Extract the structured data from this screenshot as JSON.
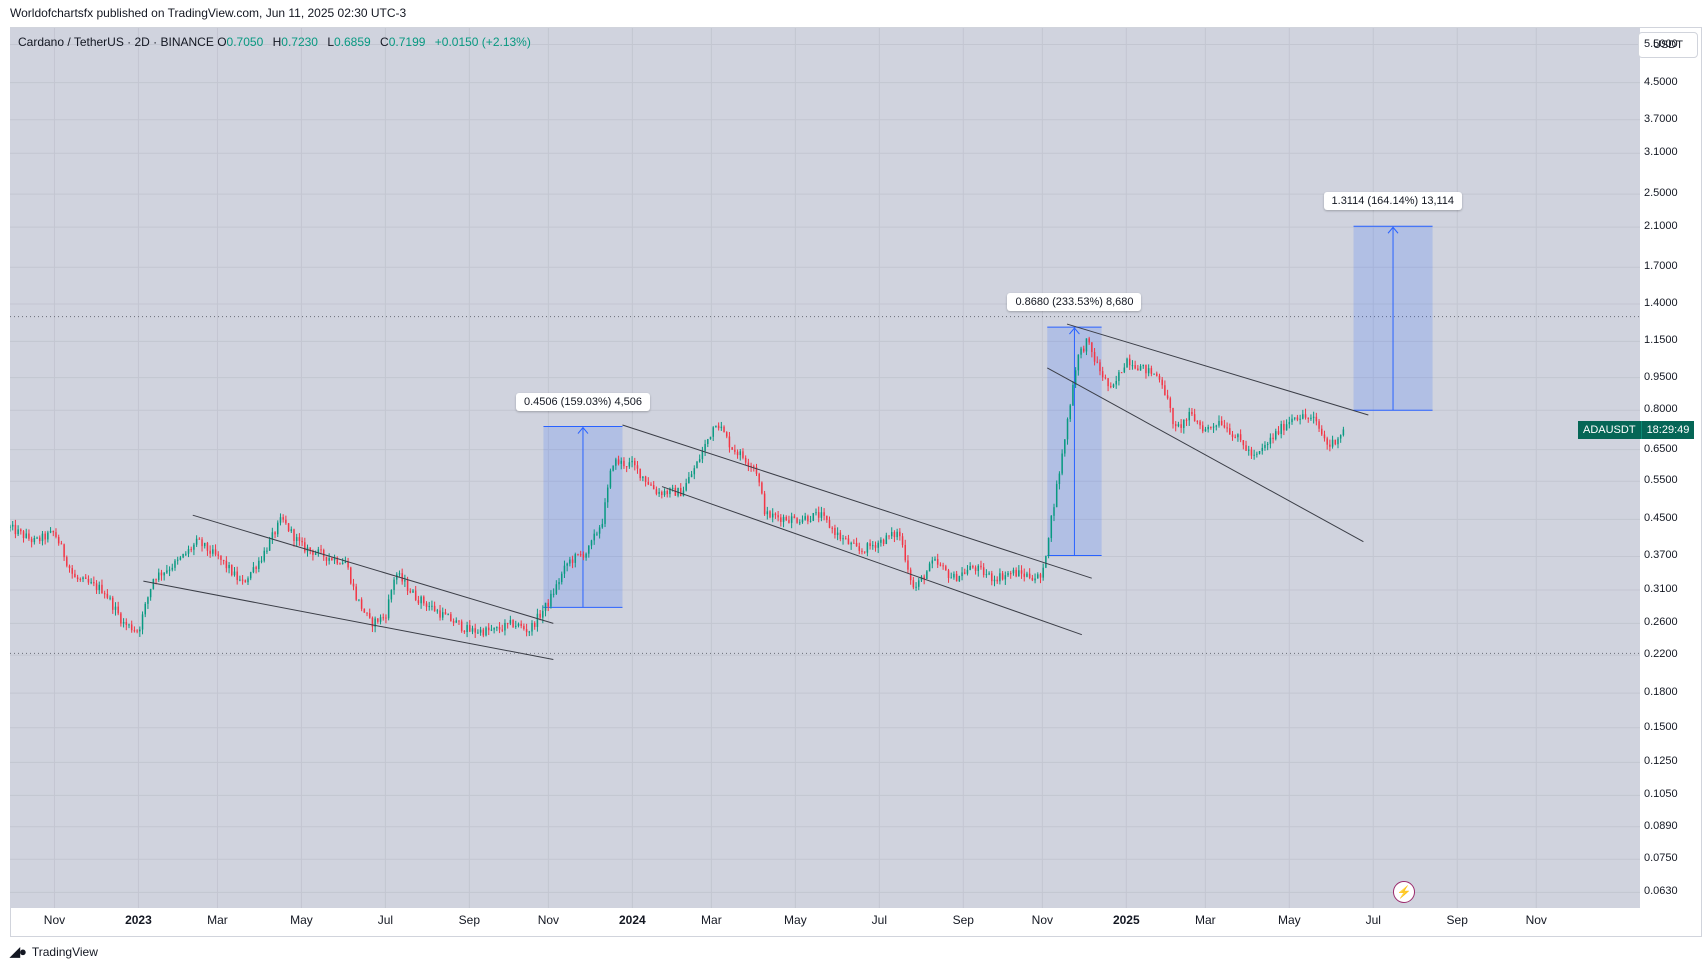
{
  "header": {
    "published_text": "Worldofchartsfx published on TradingView.com, Jun 11, 2025 02:30 UTC-3"
  },
  "legend": {
    "symbol_text": "Cardano / TetherUS · 2D · BINANCE",
    "open_label": "O",
    "open": "0.7050",
    "high_label": "H",
    "high": "0.7230",
    "low_label": "L",
    "low": "0.6859",
    "close_label": "C",
    "close": "0.7199",
    "change": "+0.0150 (+2.13%)"
  },
  "currency_unit": "USDT",
  "price_tag": {
    "symbol": "ADAUSDT",
    "timer": "18:29:49",
    "color": "#056656"
  },
  "colors": {
    "up": "#089981",
    "down": "#f23645",
    "measure": "#2962ff",
    "background": "#d0d3de"
  },
  "brand": {
    "name": "TradingView",
    "icon": "tradingview-logo-icon"
  },
  "chart_data": {
    "type": "candlestick",
    "symbol": "ADAUSDT",
    "timeframe": "2D",
    "y_scale": "log",
    "ylim": [
      0.058,
      6.0
    ],
    "y_ticks": [
      "5.5000",
      "4.5000",
      "3.7000",
      "3.1000",
      "2.5000",
      "2.1000",
      "1.7000",
      "1.4000",
      "1.1500",
      "0.9500",
      "0.8000",
      "0.6500",
      "0.5500",
      "0.4500",
      "0.3700",
      "0.3100",
      "0.2600",
      "0.2200",
      "0.1800",
      "0.1500",
      "0.1250",
      "0.1050",
      "0.0890",
      "0.0750",
      "0.0630"
    ],
    "x_ticks": [
      {
        "label": "Nov",
        "t": 2022.83,
        "year": false
      },
      {
        "label": "2023",
        "t": 2023.0,
        "year": true
      },
      {
        "label": "Mar",
        "t": 2023.16,
        "year": false
      },
      {
        "label": "May",
        "t": 2023.33,
        "year": false
      },
      {
        "label": "Jul",
        "t": 2023.5,
        "year": false
      },
      {
        "label": "Sep",
        "t": 2023.67,
        "year": false
      },
      {
        "label": "Nov",
        "t": 2023.83,
        "year": false
      },
      {
        "label": "2024",
        "t": 2024.0,
        "year": true
      },
      {
        "label": "Mar",
        "t": 2024.16,
        "year": false
      },
      {
        "label": "May",
        "t": 2024.33,
        "year": false
      },
      {
        "label": "Jul",
        "t": 2024.5,
        "year": false
      },
      {
        "label": "Sep",
        "t": 2024.67,
        "year": false
      },
      {
        "label": "Nov",
        "t": 2024.83,
        "year": false
      },
      {
        "label": "2025",
        "t": 2025.0,
        "year": true
      },
      {
        "label": "Mar",
        "t": 2025.16,
        "year": false
      },
      {
        "label": "May",
        "t": 2025.33,
        "year": false
      },
      {
        "label": "Jul",
        "t": 2025.5,
        "year": false
      },
      {
        "label": "Sep",
        "t": 2025.67,
        "year": false
      },
      {
        "label": "Nov",
        "t": 2025.83,
        "year": false
      }
    ],
    "xlim": [
      2022.74,
      2026.04
    ],
    "price_path": [
      [
        2022.74,
        0.43
      ],
      [
        2022.79,
        0.4
      ],
      [
        2022.83,
        0.42
      ],
      [
        2022.87,
        0.33
      ],
      [
        2022.93,
        0.31
      ],
      [
        2022.97,
        0.26
      ],
      [
        2023.0,
        0.25
      ],
      [
        2023.03,
        0.33
      ],
      [
        2023.08,
        0.36
      ],
      [
        2023.12,
        0.4
      ],
      [
        2023.17,
        0.36
      ],
      [
        2023.21,
        0.32
      ],
      [
        2023.25,
        0.37
      ],
      [
        2023.29,
        0.45
      ],
      [
        2023.33,
        0.39
      ],
      [
        2023.38,
        0.37
      ],
      [
        2023.42,
        0.36
      ],
      [
        2023.44,
        0.3
      ],
      [
        2023.47,
        0.26
      ],
      [
        2023.5,
        0.27
      ],
      [
        2023.52,
        0.34
      ],
      [
        2023.56,
        0.3
      ],
      [
        2023.62,
        0.27
      ],
      [
        2023.67,
        0.25
      ],
      [
        2023.72,
        0.25
      ],
      [
        2023.76,
        0.26
      ],
      [
        2023.79,
        0.25
      ],
      [
        2023.83,
        0.29
      ],
      [
        2023.87,
        0.36
      ],
      [
        2023.91,
        0.38
      ],
      [
        2023.94,
        0.45
      ],
      [
        2023.96,
        0.61
      ],
      [
        2024.0,
        0.6
      ],
      [
        2024.05,
        0.52
      ],
      [
        2024.1,
        0.52
      ],
      [
        2024.13,
        0.6
      ],
      [
        2024.17,
        0.76
      ],
      [
        2024.2,
        0.66
      ],
      [
        2024.25,
        0.59
      ],
      [
        2024.27,
        0.46
      ],
      [
        2024.33,
        0.45
      ],
      [
        2024.38,
        0.46
      ],
      [
        2024.42,
        0.41
      ],
      [
        2024.46,
        0.38
      ],
      [
        2024.5,
        0.4
      ],
      [
        2024.54,
        0.42
      ],
      [
        2024.57,
        0.31
      ],
      [
        2024.61,
        0.36
      ],
      [
        2024.65,
        0.33
      ],
      [
        2024.69,
        0.35
      ],
      [
        2024.73,
        0.33
      ],
      [
        2024.77,
        0.34
      ],
      [
        2024.83,
        0.33
      ],
      [
        2024.84,
        0.4
      ],
      [
        2024.87,
        0.63
      ],
      [
        2024.9,
        1.05
      ],
      [
        2024.92,
        1.15
      ],
      [
        2024.94,
        1.02
      ],
      [
        2024.97,
        0.88
      ],
      [
        2025.0,
        1.05
      ],
      [
        2025.03,
        1.0
      ],
      [
        2025.07,
        0.95
      ],
      [
        2025.1,
        0.72
      ],
      [
        2025.13,
        0.78
      ],
      [
        2025.16,
        0.72
      ],
      [
        2025.19,
        0.76
      ],
      [
        2025.23,
        0.68
      ],
      [
        2025.26,
        0.62
      ],
      [
        2025.3,
        0.7
      ],
      [
        2025.34,
        0.78
      ],
      [
        2025.38,
        0.76
      ],
      [
        2025.41,
        0.66
      ],
      [
        2025.44,
        0.72
      ]
    ],
    "trendlines": [
      [
        [
          2023.11,
          0.46
        ],
        [
          2023.84,
          0.26
        ]
      ],
      [
        [
          2023.01,
          0.325
        ],
        [
          2023.84,
          0.215
        ]
      ],
      [
        [
          2023.98,
          0.74
        ],
        [
          2024.93,
          0.33
        ]
      ],
      [
        [
          2024.06,
          0.535
        ],
        [
          2024.91,
          0.245
        ]
      ],
      [
        [
          2024.88,
          1.26
        ],
        [
          2025.49,
          0.78
        ]
      ],
      [
        [
          2024.84,
          1.0
        ],
        [
          2025.48,
          0.4
        ]
      ]
    ],
    "dotted_levels": [
      1.31,
      0.222
    ],
    "measurements": [
      {
        "x0": 2023.82,
        "x1": 2023.98,
        "low": 0.283,
        "high": 0.734,
        "label": "0.4506 (159.03%) 4,506"
      },
      {
        "x0": 2024.84,
        "x1": 2024.95,
        "low": 0.372,
        "high": 1.24,
        "label": "0.8680 (233.53%) 8,680"
      },
      {
        "x0": 2025.46,
        "x1": 2025.62,
        "low": 0.8,
        "high": 2.11,
        "label": "1.3114 (164.14%) 13,114"
      }
    ]
  }
}
